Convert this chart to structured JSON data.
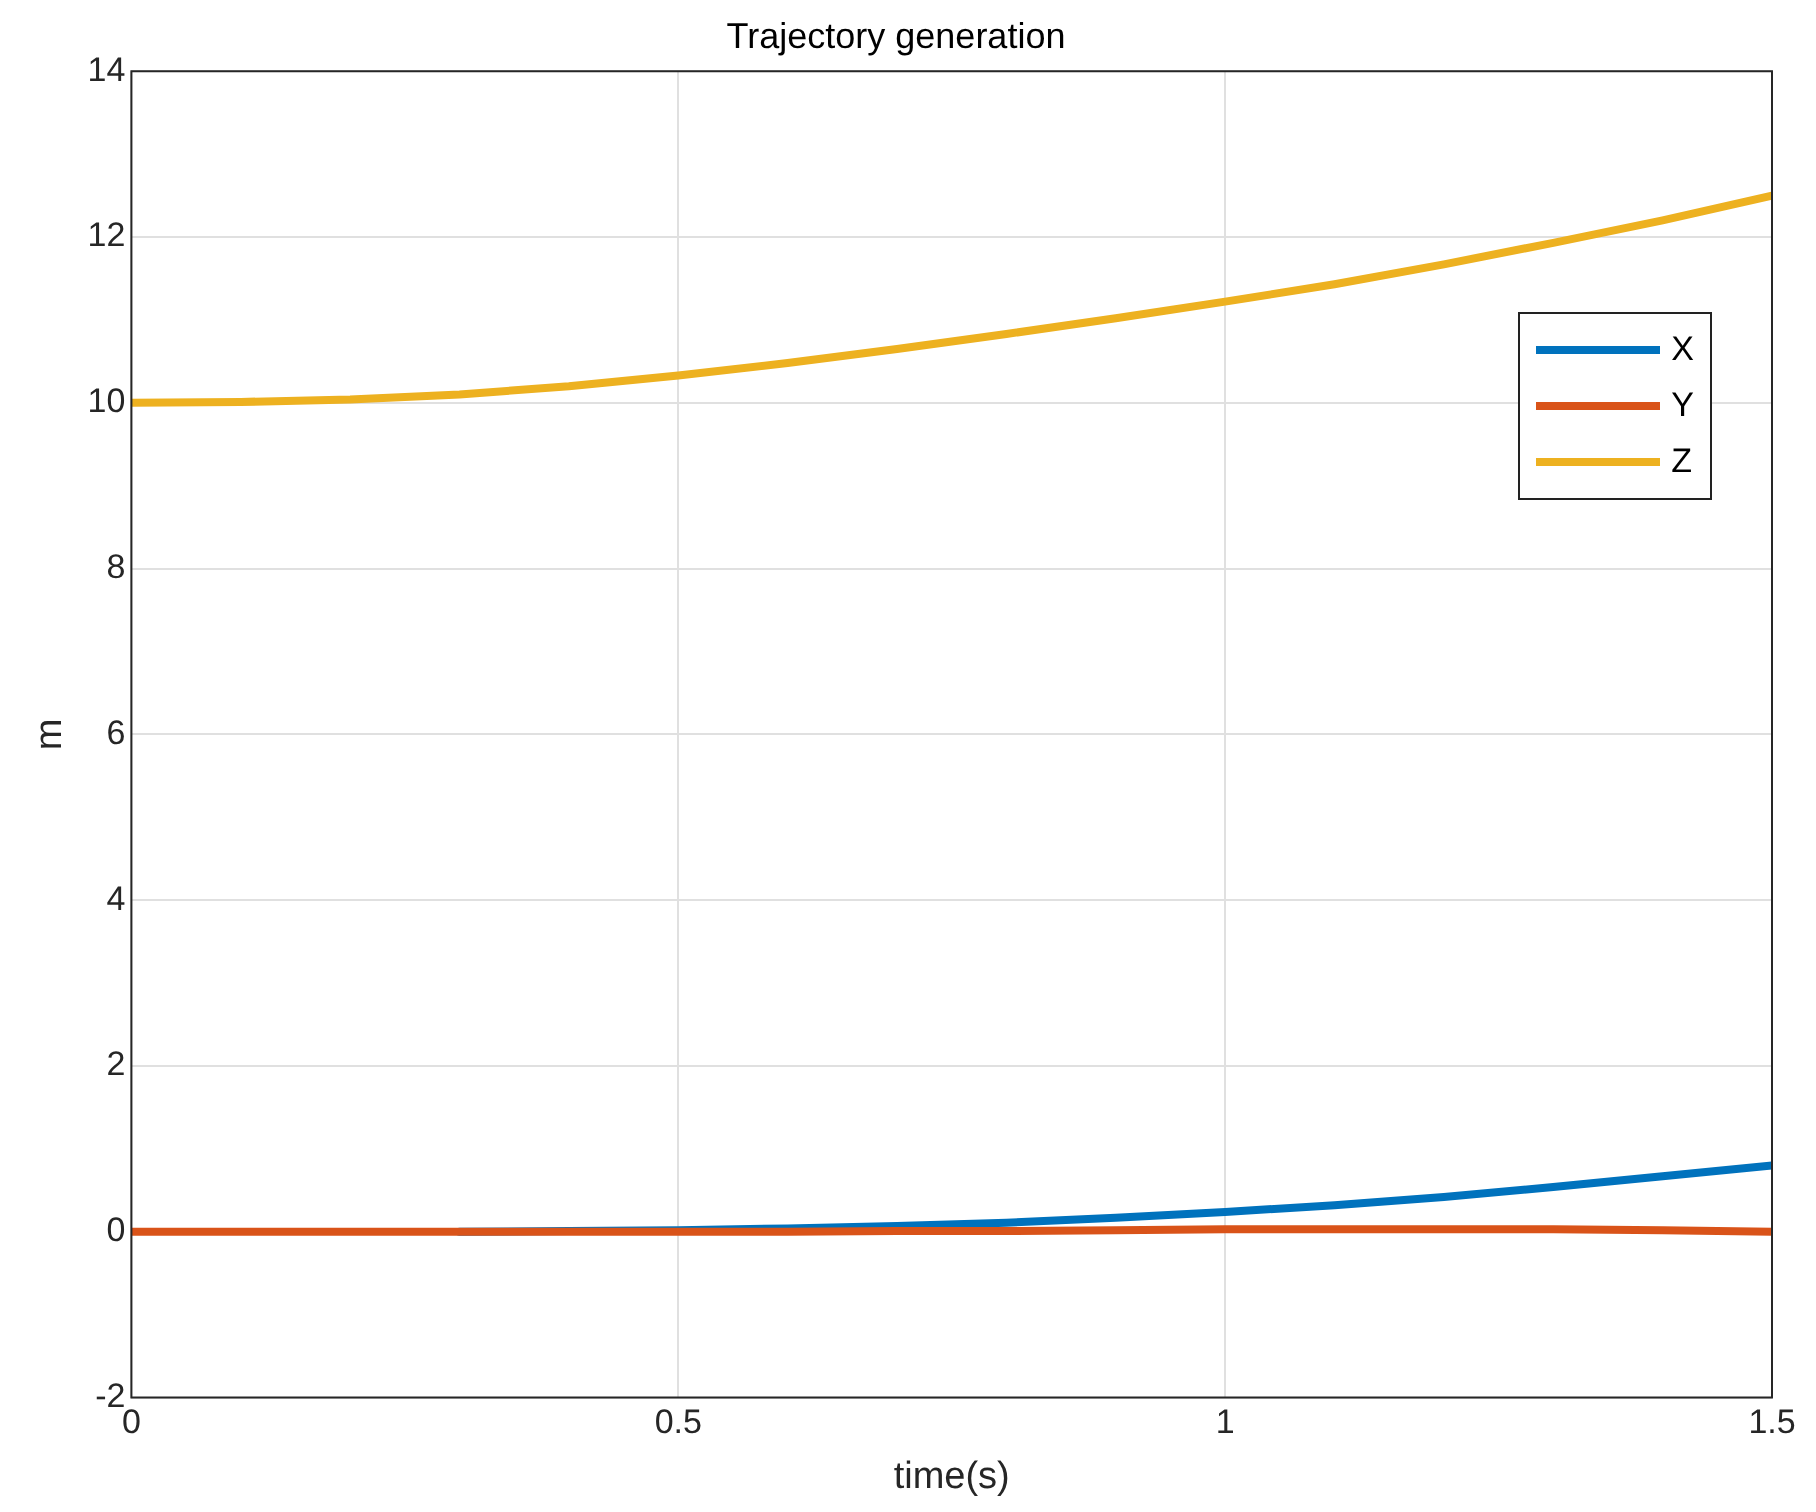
{
  "chart_data": {
    "type": "line",
    "title": "Trajectory generation",
    "xlabel": "time(s)",
    "ylabel": "m",
    "x": [
      0,
      0.1,
      0.2,
      0.3,
      0.4,
      0.5,
      0.6,
      0.7,
      0.8,
      0.9,
      1.0,
      1.1,
      1.2,
      1.3,
      1.4,
      1.5
    ],
    "series": [
      {
        "name": "X",
        "color": "#0072bd",
        "values": [
          null,
          null,
          null,
          0,
          0.01,
          0.02,
          0.04,
          0.07,
          0.11,
          0.17,
          0.24,
          0.32,
          0.42,
          0.54,
          0.67,
          0.8
        ]
      },
      {
        "name": "Y",
        "color": "#d95319",
        "values": [
          0,
          0,
          0,
          0,
          0,
          0,
          0,
          0.01,
          0.01,
          0.02,
          0.03,
          0.03,
          0.03,
          0.03,
          0.02,
          0
        ]
      },
      {
        "name": "Z",
        "color": "#edb120",
        "values": [
          10,
          10.01,
          10.04,
          10.1,
          10.2,
          10.33,
          10.48,
          10.65,
          10.83,
          11.02,
          11.22,
          11.43,
          11.67,
          11.93,
          12.2,
          12.5
        ]
      }
    ],
    "xlim": [
      0,
      1.5
    ],
    "xticks": [
      0,
      0.5,
      1,
      1.5
    ],
    "ylim": [
      -2,
      14
    ],
    "yticks": [
      -2,
      0,
      2,
      4,
      6,
      8,
      10,
      12,
      14
    ],
    "grid": true,
    "legend": "top right",
    "marker": "none",
    "line_style": "solid"
  }
}
